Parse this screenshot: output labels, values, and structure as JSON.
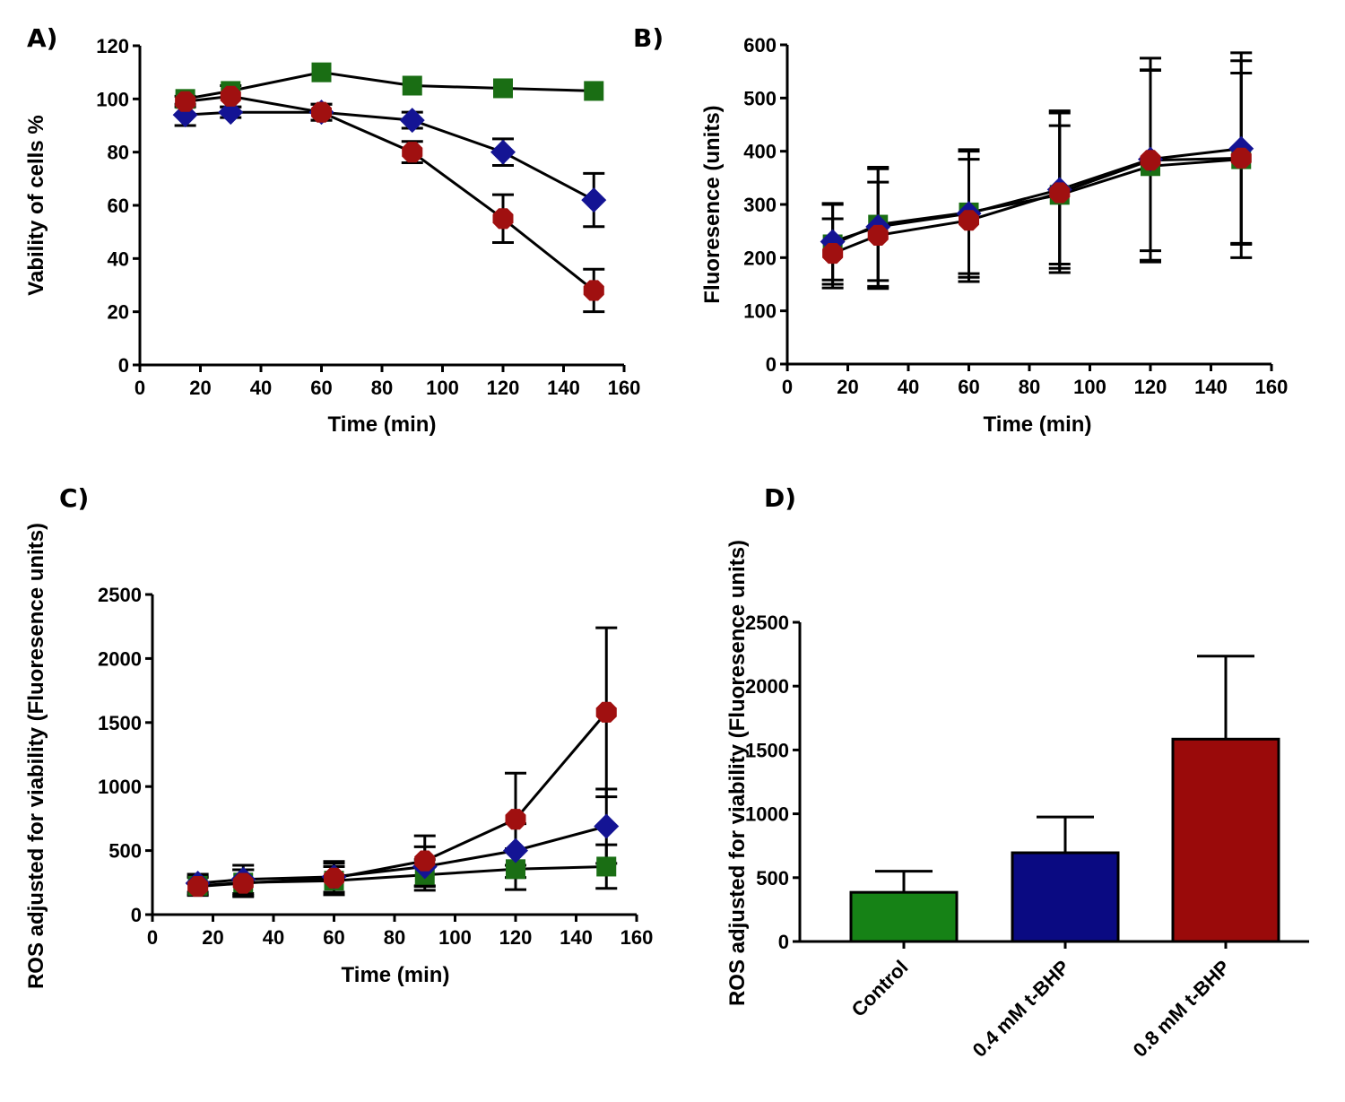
{
  "chart_data": [
    {
      "panel": "A)",
      "type": "line",
      "xlabel": "Time (min)",
      "ylabel": "Vability of cells %",
      "xlim": [
        0,
        160
      ],
      "ylim": [
        0,
        120
      ],
      "xticks": [
        0,
        20,
        40,
        60,
        80,
        100,
        120,
        140,
        160
      ],
      "yticks": [
        0,
        20,
        40,
        60,
        80,
        100,
        120
      ],
      "x": [
        15,
        30,
        60,
        90,
        120,
        150
      ],
      "series": [
        {
          "marker": "square",
          "color": "#1a6e14",
          "values": [
            100,
            103,
            110,
            105,
            104,
            103
          ],
          "err": [
            0,
            0,
            0,
            0,
            0,
            0
          ]
        },
        {
          "marker": "diamond",
          "color": "#141494",
          "values": [
            94,
            95,
            95,
            92,
            80,
            62
          ],
          "err": [
            4,
            2,
            3,
            3,
            5,
            10
          ]
        },
        {
          "marker": "circle",
          "color": "#a01010",
          "values": [
            99,
            101,
            95,
            80,
            55,
            28
          ],
          "err": [
            2,
            4,
            3,
            4,
            9,
            8
          ]
        }
      ]
    },
    {
      "panel": "B)",
      "type": "line",
      "xlabel": "Time (min)",
      "ylabel": "Fluoresence (units)",
      "xlim": [
        0,
        160
      ],
      "ylim": [
        0,
        600
      ],
      "xticks": [
        0,
        20,
        40,
        60,
        80,
        100,
        120,
        140,
        160
      ],
      "yticks": [
        0,
        100,
        200,
        300,
        400,
        500,
        600
      ],
      "x": [
        15,
        30,
        60,
        90,
        120,
        150
      ],
      "series": [
        {
          "marker": "square",
          "color": "#1a6e14",
          "values": [
            225,
            262,
            285,
            318,
            372,
            385
          ],
          "err": [
            75,
            105,
            115,
            130,
            180,
            185
          ]
        },
        {
          "marker": "diamond",
          "color": "#141494",
          "values": [
            230,
            258,
            283,
            328,
            385,
            405
          ],
          "err": [
            72,
            112,
            120,
            148,
            190,
            180
          ]
        },
        {
          "marker": "circle",
          "color": "#a01010",
          "values": [
            208,
            242,
            270,
            322,
            383,
            387
          ],
          "err": [
            65,
            100,
            115,
            150,
            170,
            160
          ]
        }
      ]
    },
    {
      "panel": "C)",
      "type": "line",
      "xlabel": "Time (min)",
      "ylabel": "ROS adjusted for viability (Fluoresence units)",
      "xlim": [
        0,
        160
      ],
      "ylim": [
        0,
        2500
      ],
      "xticks": [
        0,
        20,
        40,
        60,
        80,
        100,
        120,
        140,
        160
      ],
      "yticks": [
        0,
        500,
        1000,
        1500,
        2000,
        2500
      ],
      "x": [
        15,
        30,
        60,
        90,
        120,
        150
      ],
      "series": [
        {
          "marker": "square",
          "color": "#1a6e14",
          "values": [
            225,
            250,
            265,
            310,
            355,
            375
          ],
          "err": [
            70,
            100,
            110,
            120,
            160,
            170
          ]
        },
        {
          "marker": "diamond",
          "color": "#141494",
          "values": [
            245,
            275,
            295,
            375,
            500,
            690
          ],
          "err": [
            70,
            110,
            120,
            155,
            210,
            290
          ]
        },
        {
          "marker": "circle",
          "color": "#a01010",
          "values": [
            220,
            245,
            285,
            420,
            745,
            1580
          ],
          "err": [
            70,
            105,
            115,
            195,
            360,
            660
          ]
        }
      ]
    },
    {
      "panel": "D)",
      "type": "bar",
      "ylabel": "ROS adjusted for viability (Fluoresence units)",
      "ylim": [
        0,
        2500
      ],
      "yticks": [
        0,
        500,
        1000,
        1500,
        2000,
        2500
      ],
      "categories": [
        "Control",
        "0.4 mM t-BHP",
        "0.8 mM t-BHP"
      ],
      "values": [
        385,
        695,
        1585
      ],
      "err": [
        165,
        280,
        650
      ],
      "colors": [
        "#168216",
        "#0a0a82",
        "#9a0a0a"
      ]
    }
  ]
}
